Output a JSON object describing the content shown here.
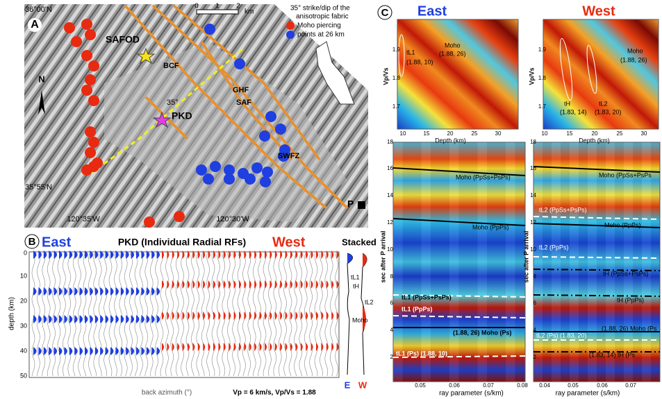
{
  "panel_a": {
    "label": "A",
    "lat_labels": [
      "36°00'N",
      "35°55'N"
    ],
    "lon_labels": [
      "120°35'W",
      "120°30'W"
    ],
    "scale": [
      "0",
      "1",
      "2",
      "km"
    ],
    "fabric_legend": [
      "35° strike/dip of the",
      "anisotropic fabric"
    ],
    "piercing_legend": [
      "Moho piercing",
      "points at 26 km"
    ],
    "places": [
      "SAFOD",
      "BCF",
      "GHF",
      "SAF",
      "SWFZ",
      "PKD"
    ],
    "dip": "35°",
    "north": "N",
    "station": "P"
  },
  "panel_b": {
    "label": "B",
    "east": "East",
    "title": "PKD (Individual Radial RFs)",
    "west": "West",
    "stacked": "Stacked",
    "y_label": "depth (km)",
    "yticks": [
      0,
      10,
      20,
      30,
      40,
      50
    ],
    "x_label": "back azimuth (°)",
    "model": "Vp = 6 km/s, Vp/Vs = 1.88",
    "stack_labels": [
      "E",
      "W"
    ],
    "phases": [
      "tL1",
      "tH",
      "tL2",
      "Moho"
    ]
  },
  "panel_c": {
    "label": "C",
    "east": "East",
    "west": "West",
    "grid_east": {
      "y_label": "Vp/Vs",
      "x_label": "Depth (km)",
      "yticks": [
        1.7,
        1.8,
        1.9
      ],
      "xticks": [
        10,
        15,
        20,
        25,
        30
      ],
      "notes": [
        "tL1",
        "(1.88, 10)",
        "Moho",
        "(1.88, 26)"
      ]
    },
    "grid_west": {
      "y_label": "Vp/Vs",
      "x_label": "Depth (km)",
      "yticks": [
        1.7,
        1.8,
        1.9
      ],
      "xticks": [
        10,
        15,
        20,
        25,
        30
      ],
      "notes": [
        "Moho",
        "(1.88, 26)",
        "tH",
        "(1.83, 14)",
        "tL2",
        "(1.83, 20)"
      ]
    },
    "stack_east": {
      "y_label": "sec after P arrival",
      "x_label": "ray parameter (s/km)",
      "yticks": [
        2,
        4,
        6,
        8,
        10,
        12,
        14,
        16,
        18
      ],
      "xticks": [
        0.05,
        0.06,
        0.07,
        0.08
      ],
      "notes": [
        "Moho (PpSs+PsPs)",
        "Moho (PpPs)",
        "tL1 (PpSs+PsPs)",
        "tL1 (PpPs)",
        "(1.88, 26) Moho (Ps)",
        "tL1 (Ps) (1.88, 10)"
      ]
    },
    "stack_west": {
      "y_label": "sec after P arrival",
      "x_label": "ray parameter (s/km)",
      "yticks": [
        2,
        4,
        6,
        8,
        10,
        12,
        14,
        16,
        18
      ],
      "xticks": [
        0.04,
        0.05,
        0.06,
        0.07
      ],
      "notes": [
        "Moho (PpSs+PsPs",
        "tL2 (PpSs+PsPs)",
        "Moho (PpPs)",
        "tL2 (PpPs)",
        "tH (PpSs+PsPs)",
        "tH (PpPs)",
        "(1.88, 26) Moho (Ps",
        "tL2 (Ps) (1.83, 20)",
        "(1.83, 14) tH (Ps"
      ]
    }
  }
}
